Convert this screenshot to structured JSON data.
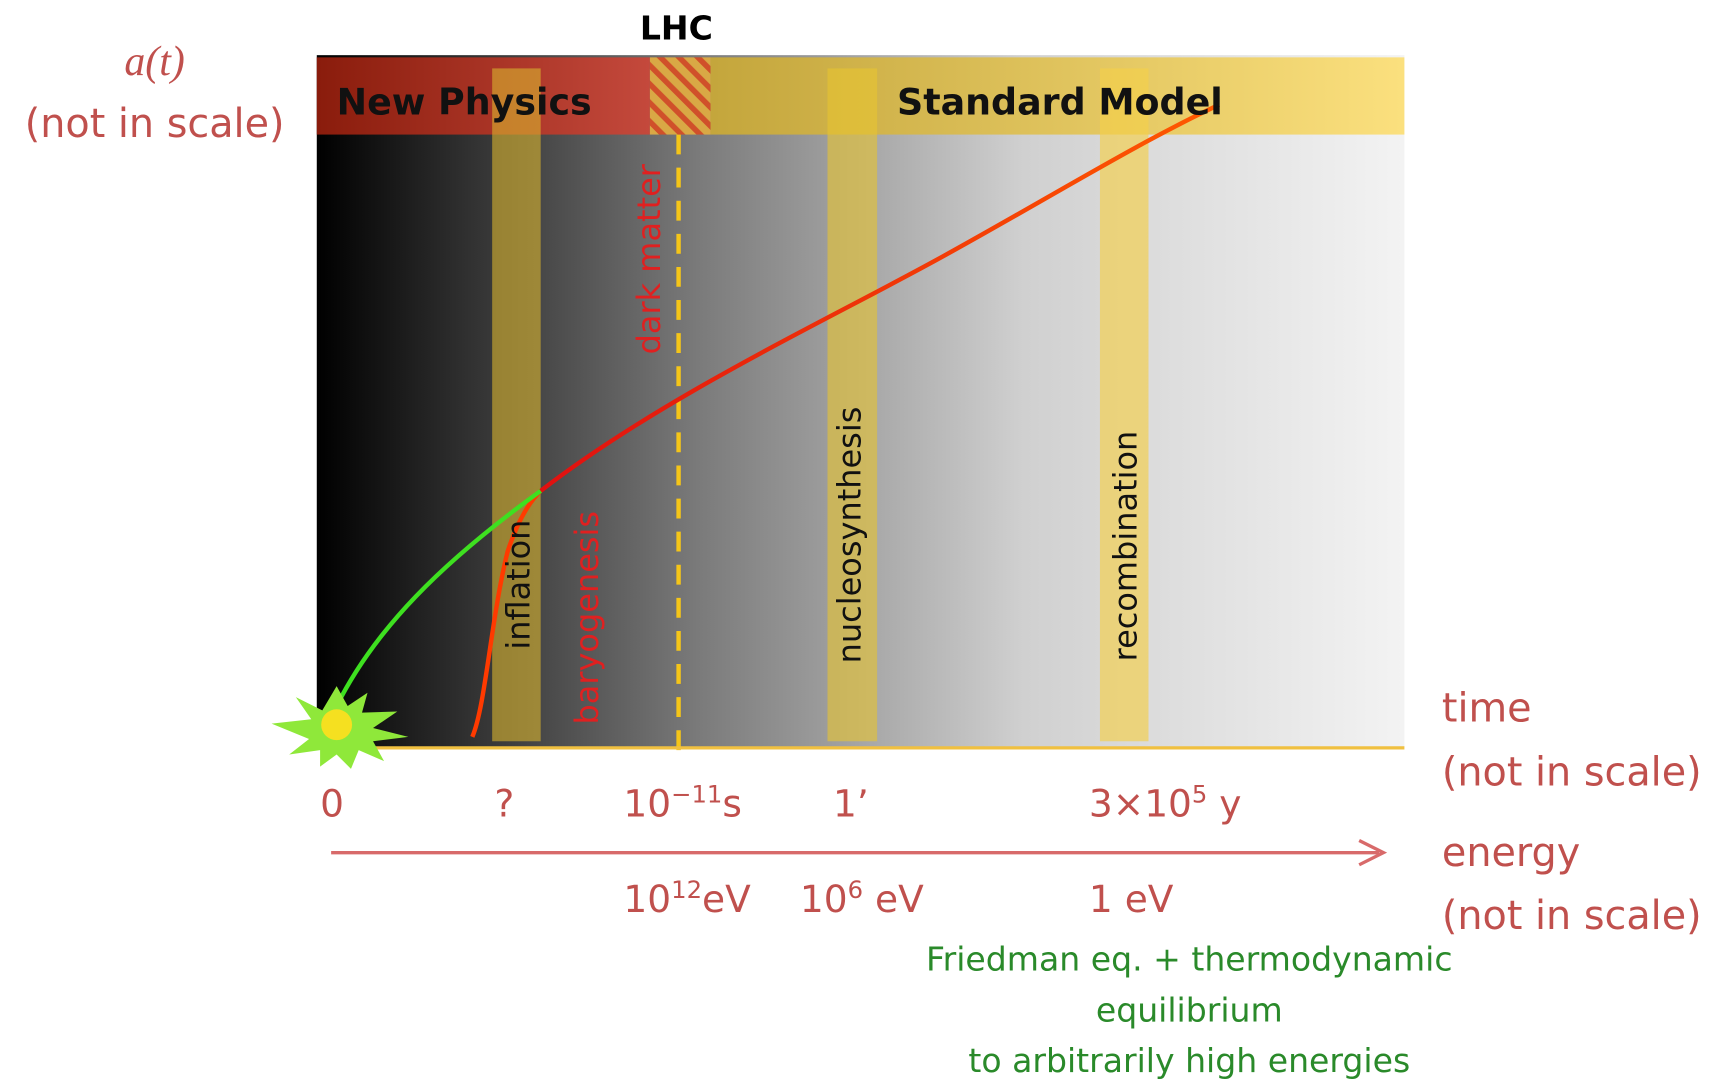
{
  "y_axis": {
    "label": "a(t)",
    "note": "(not in scale)"
  },
  "top_label": "LHC",
  "bands": {
    "new_physics": "New Physics",
    "standard_model": "Standard Model"
  },
  "epochs": [
    "inflation",
    "baryogenesis",
    "dark matter",
    "nucleosynthesis",
    "recombination"
  ],
  "time_axis": {
    "label": "time",
    "note": "(not in scale)",
    "ticks": [
      [
        "0"
      ],
      [
        "?"
      ],
      [
        "10",
        "−11",
        "s"
      ],
      [
        "1’"
      ],
      [
        "3×10",
        "5",
        " y"
      ]
    ]
  },
  "energy_axis": {
    "label": "energy",
    "note": "(not in scale)",
    "ticks": [
      [
        "10",
        "12",
        "eV"
      ],
      [
        "10",
        "6",
        " eV"
      ],
      [
        "1 eV"
      ]
    ]
  },
  "footnote": [
    "Friedman eq. + thermodynamic",
    "equilibrium",
    "to arbitrarily high energies"
  ]
}
